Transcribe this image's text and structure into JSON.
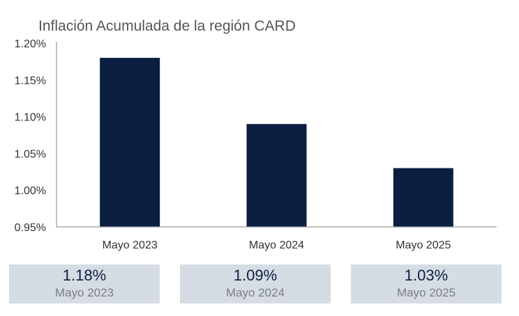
{
  "chart_data": {
    "type": "bar",
    "title": "Inflación Acumulada de la región CARD",
    "categories": [
      "Mayo 2023",
      "Mayo 2024",
      "Mayo 2025"
    ],
    "values": [
      1.18,
      1.09,
      1.03
    ],
    "yticks": [
      "0.95%",
      "1.00%",
      "1.05%",
      "1.10%",
      "1.15%",
      "1.20%"
    ],
    "ylim": [
      0.95,
      1.2
    ],
    "bar_color": "#0b1e42",
    "grid": false
  },
  "summary_cards": [
    {
      "value": "1.18%",
      "label": "Mayo 2023"
    },
    {
      "value": "1.09%",
      "label": "Mayo 2024"
    },
    {
      "value": "1.03%",
      "label": "Mayo 2025"
    }
  ],
  "colors": {
    "card_background": "#d6dce3",
    "card_value": "#0d1f45",
    "card_label": "#7a7f86"
  }
}
